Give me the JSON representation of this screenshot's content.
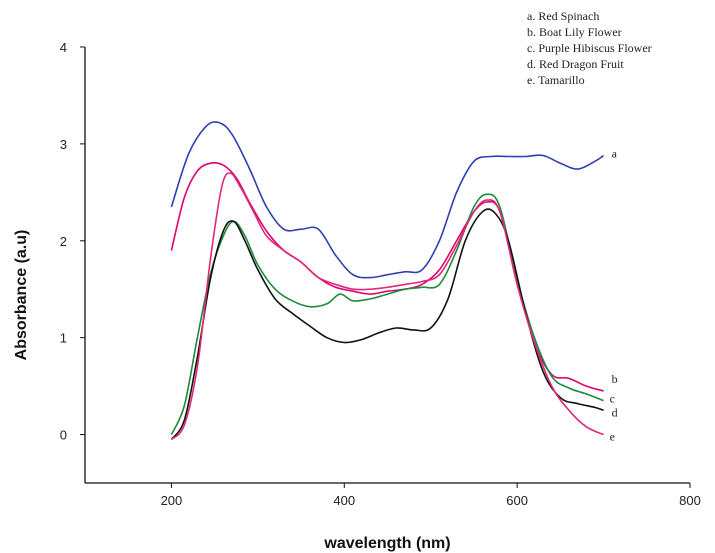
{
  "chart_data": {
    "type": "line",
    "xlabel": "wavelength (nm)",
    "ylabel": "Absorbance (a.u)",
    "xlim": [
      100,
      800
    ],
    "ylim": [
      -0.5,
      4
    ],
    "xticks": [
      200,
      400,
      600,
      800
    ],
    "yticks": [
      0,
      1,
      2,
      3,
      4
    ],
    "grid": false,
    "legend": {
      "placement": "top-right",
      "entries": [
        "a. Red Spinach",
        "b. Boat Lily Flower",
        "c. Purple Hibiscus Flower",
        "d. Red Dragon Fruit",
        "e. Tamarillo"
      ]
    },
    "series": [
      {
        "label": "a",
        "color": "#2f3fb0",
        "x": [
          200,
          220,
          240,
          255,
          270,
          290,
          310,
          330,
          350,
          370,
          390,
          410,
          430,
          450,
          470,
          490,
          510,
          530,
          550,
          570,
          590,
          610,
          630,
          650,
          670,
          690,
          700
        ],
        "y": [
          2.35,
          2.9,
          3.18,
          3.22,
          3.1,
          2.75,
          2.35,
          2.12,
          2.12,
          2.12,
          1.85,
          1.65,
          1.62,
          1.65,
          1.68,
          1.7,
          2.0,
          2.5,
          2.82,
          2.87,
          2.87,
          2.87,
          2.88,
          2.8,
          2.74,
          2.82,
          2.88
        ]
      },
      {
        "label": "b",
        "color": "#e0006e",
        "x": [
          200,
          215,
          230,
          245,
          260,
          275,
          290,
          310,
          330,
          350,
          370,
          390,
          410,
          430,
          450,
          470,
          490,
          510,
          530,
          550,
          565,
          580,
          600,
          620,
          640,
          660,
          680,
          700
        ],
        "y": [
          1.9,
          2.45,
          2.72,
          2.8,
          2.78,
          2.65,
          2.4,
          2.1,
          1.9,
          1.78,
          1.62,
          1.52,
          1.48,
          1.45,
          1.48,
          1.5,
          1.55,
          1.7,
          2.0,
          2.3,
          2.4,
          2.3,
          1.6,
          0.95,
          0.62,
          0.58,
          0.5,
          0.45
        ]
      },
      {
        "label": "c",
        "color": "#1f8a3a",
        "x": [
          200,
          215,
          230,
          245,
          260,
          272,
          285,
          300,
          320,
          340,
          360,
          380,
          395,
          410,
          430,
          450,
          470,
          490,
          510,
          530,
          550,
          565,
          580,
          600,
          620,
          640,
          660,
          680,
          700
        ],
        "y": [
          0.0,
          0.3,
          1.0,
          1.65,
          2.05,
          2.2,
          2.05,
          1.75,
          1.5,
          1.38,
          1.32,
          1.35,
          1.45,
          1.38,
          1.4,
          1.45,
          1.5,
          1.52,
          1.55,
          1.9,
          2.35,
          2.48,
          2.35,
          1.6,
          1.0,
          0.6,
          0.48,
          0.42,
          0.35
        ]
      },
      {
        "label": "d",
        "color": "#111111",
        "x": [
          200,
          215,
          230,
          245,
          260,
          272,
          285,
          300,
          320,
          340,
          360,
          380,
          400,
          420,
          440,
          460,
          480,
          500,
          520,
          540,
          560,
          575,
          590,
          610,
          630,
          650,
          670,
          690,
          700
        ],
        "y": [
          -0.05,
          0.15,
          0.8,
          1.6,
          2.1,
          2.2,
          2.0,
          1.7,
          1.4,
          1.25,
          1.12,
          1.0,
          0.95,
          0.98,
          1.05,
          1.1,
          1.08,
          1.1,
          1.4,
          2.0,
          2.3,
          2.28,
          2.0,
          1.25,
          0.65,
          0.38,
          0.32,
          0.28,
          0.25
        ]
      },
      {
        "label": "e",
        "color": "#e0287a",
        "x": [
          200,
          215,
          230,
          245,
          258,
          268,
          280,
          295,
          310,
          330,
          350,
          370,
          390,
          410,
          430,
          450,
          470,
          490,
          510,
          530,
          550,
          565,
          580,
          600,
          620,
          640,
          660,
          680,
          700
        ],
        "y": [
          -0.05,
          0.1,
          0.7,
          1.8,
          2.55,
          2.7,
          2.55,
          2.3,
          2.05,
          1.9,
          1.78,
          1.62,
          1.55,
          1.5,
          1.5,
          1.52,
          1.55,
          1.58,
          1.65,
          1.95,
          2.3,
          2.42,
          2.3,
          1.55,
          0.95,
          0.5,
          0.25,
          0.08,
          0.0
        ]
      }
    ]
  }
}
